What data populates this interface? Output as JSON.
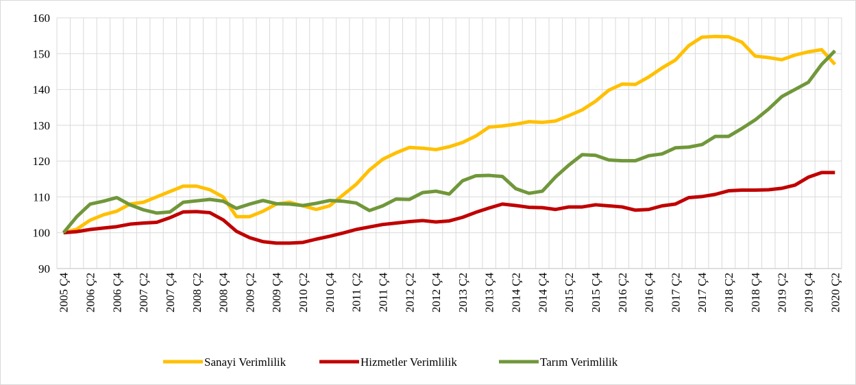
{
  "chart_data": {
    "type": "line",
    "categories": [
      "2005 Ç4",
      null,
      "2006 Ç2",
      null,
      "2006 Ç4",
      null,
      "2007 Ç2",
      null,
      "2007 Ç4",
      null,
      "2008 Ç2",
      null,
      "2008 Ç4",
      null,
      "2009 Ç2",
      null,
      "2009 Ç4",
      null,
      "2010 Ç2",
      null,
      "2010 Ç4",
      null,
      "2011 Ç2",
      null,
      "2011 Ç4",
      null,
      "2012 Ç2",
      null,
      "2012 Ç4",
      null,
      "2013 Ç2",
      null,
      "2013 Ç4",
      null,
      "2014 Ç2",
      null,
      "2014 Ç4",
      null,
      "2015 Ç2",
      null,
      "2015 Ç4",
      null,
      "2016 Ç2",
      null,
      "2016 Ç4",
      null,
      "2017 Ç2",
      null,
      "2017 Ç4",
      null,
      "2018 Ç2",
      null,
      "2018 Ç4",
      null,
      "2019 Ç2",
      null,
      "2019 Ç4",
      null,
      "2020 Ç2"
    ],
    "series": [
      {
        "name": "Sanayi Verimlilik",
        "color": "#ffc000",
        "values": [
          100,
          101,
          103.5,
          105,
          106,
          108,
          108.5,
          110,
          111.5,
          113,
          113,
          112,
          110,
          104.5,
          104.5,
          106,
          108,
          108.5,
          107.5,
          106.5,
          107.5,
          110.5,
          113.5,
          117.5,
          120.5,
          122.3,
          123.8,
          123.6,
          123.2,
          124,
          125.2,
          127,
          129.5,
          129.8,
          130.3,
          131,
          130.8,
          131.2,
          132.7,
          134.3,
          136.7,
          139.8,
          141.5,
          141.4,
          143.5,
          146,
          148.2,
          152.2,
          154.6,
          154.8,
          154.7,
          153.2,
          149.3,
          148.9,
          148.3,
          149.6,
          150.5,
          151.1,
          147
        ]
      },
      {
        "name": "Hizmetler Verimlilik",
        "color": "#c00000",
        "values": [
          100,
          100.3,
          100.9,
          101.3,
          101.7,
          102.4,
          102.7,
          102.9,
          104.2,
          105.8,
          105.9,
          105.6,
          103.6,
          100.4,
          98.6,
          97.5,
          97.1,
          97.1,
          97.3,
          98.2,
          99,
          99.9,
          100.9,
          101.6,
          102.3,
          102.7,
          103.1,
          103.4,
          103,
          103.3,
          104.3,
          105.7,
          106.9,
          108,
          107.6,
          107.1,
          107,
          106.5,
          107.2,
          107.2,
          107.8,
          107.5,
          107.2,
          106.3,
          106.5,
          107.5,
          108,
          109.8,
          110.1,
          110.7,
          111.7,
          111.9,
          111.9,
          112,
          112.4,
          113.3,
          115.5,
          116.8,
          116.8
        ]
      },
      {
        "name": "Tarım Verimlilik",
        "color": "#70973a",
        "values": [
          100,
          104.5,
          108,
          108.8,
          109.8,
          107.8,
          106.4,
          105.5,
          105.8,
          108.5,
          108.9,
          109.3,
          108.8,
          106.8,
          108,
          109,
          108.1,
          108,
          107.6,
          108.2,
          109,
          108.8,
          108.3,
          106.2,
          107.5,
          109.4,
          109.3,
          111.2,
          111.6,
          110.8,
          114.5,
          115.9,
          116,
          115.7,
          112.3,
          111,
          111.6,
          115.6,
          118.9,
          121.8,
          121.6,
          120.3,
          120.1,
          120.1,
          121.5,
          122,
          123.7,
          123.9,
          124.6,
          126.9,
          126.9,
          129.1,
          131.5,
          134.5,
          138,
          140,
          142,
          147,
          150.8
        ]
      }
    ],
    "ylim": [
      90,
      160
    ],
    "yticks": [
      90,
      100,
      110,
      120,
      130,
      140,
      150,
      160
    ],
    "grid": true,
    "legend": "bottom"
  }
}
